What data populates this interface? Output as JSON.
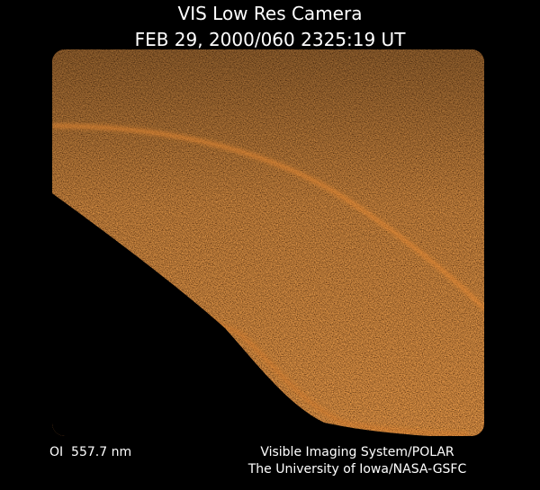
{
  "header": {
    "title": "VIS Low Res Camera",
    "timestamp": "FEB 29, 2000/060 2325:19 UT"
  },
  "footer": {
    "filter": "OI  557.7 nm",
    "credit_line_1": "Visible Imaging System/POLAR",
    "credit_line_2": "The University of Iowa/NASA-GSFC"
  }
}
